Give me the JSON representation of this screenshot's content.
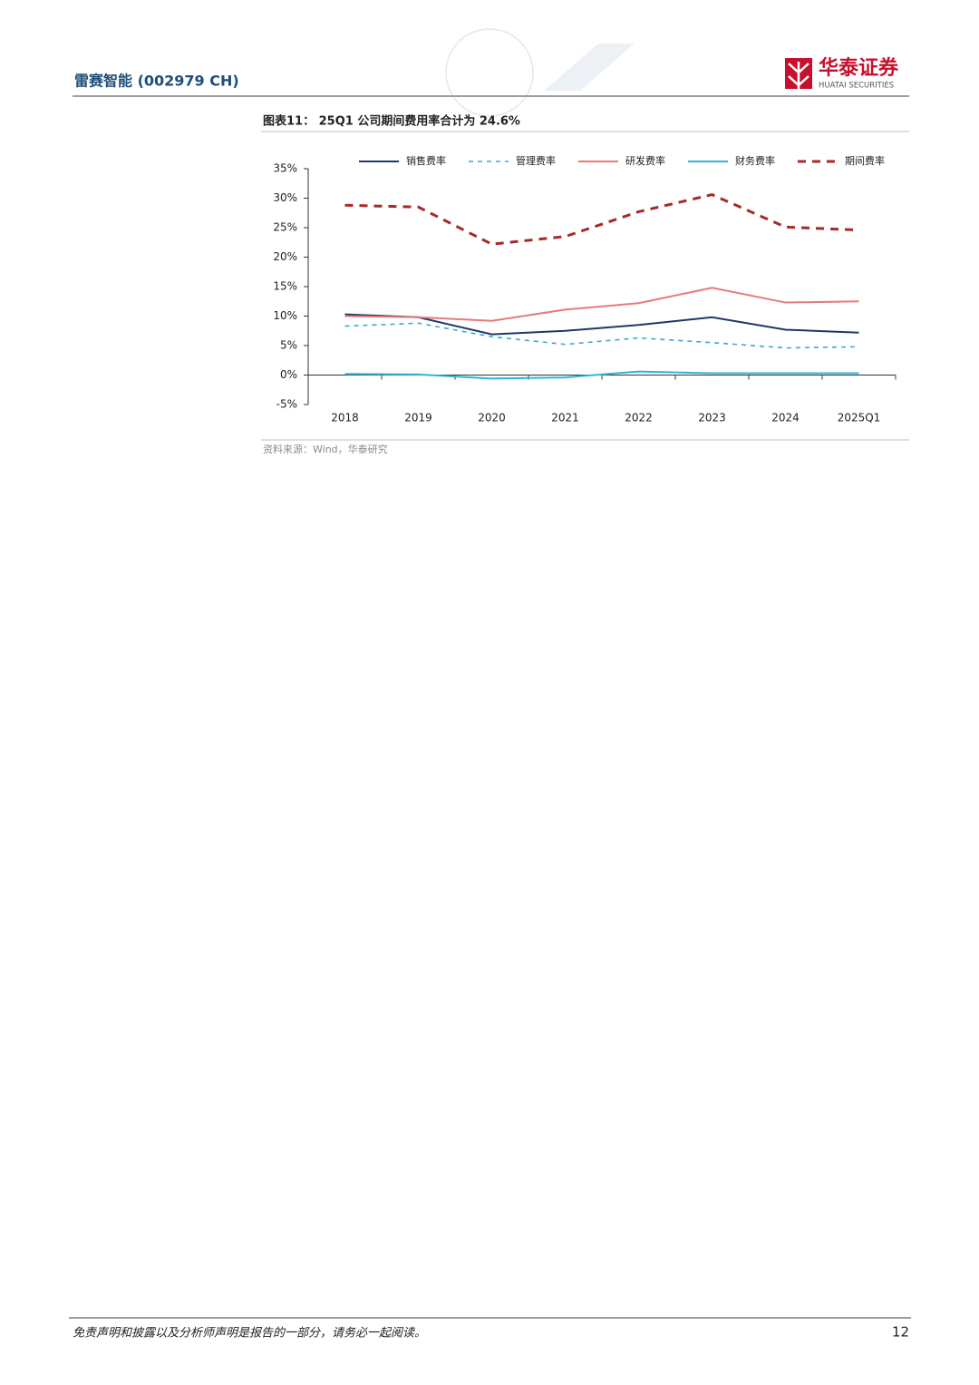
{
  "header": {
    "company": "雷赛智能 (002979 CH)",
    "logo_cn": "华泰证券",
    "logo_en": "HUATAI SECURITIES"
  },
  "chart_data": {
    "type": "line",
    "title": "图表11： 25Q1 公司期间费用率合计为 24.6%",
    "categories": [
      "2018",
      "2019",
      "2020",
      "2021",
      "2022",
      "2023",
      "2024",
      "2025Q1"
    ],
    "series": [
      {
        "name": "销售费率",
        "color": "#1f3864",
        "dashed": false,
        "values": [
          10.3,
          9.8,
          6.9,
          7.5,
          8.5,
          9.8,
          7.7,
          7.2
        ]
      },
      {
        "name": "管理费率",
        "color": "#3aa8d8",
        "dashed": true,
        "values": [
          8.3,
          8.8,
          6.5,
          5.2,
          6.3,
          5.5,
          4.6,
          4.8
        ]
      },
      {
        "name": "研发费率",
        "color": "#e8797a",
        "dashed": false,
        "values": [
          10.0,
          9.8,
          9.2,
          11.1,
          12.2,
          14.8,
          12.3,
          12.5
        ]
      },
      {
        "name": "财务费率",
        "color": "#2fb5d9",
        "dashed": false,
        "values": [
          0.2,
          0.1,
          -0.6,
          -0.4,
          0.6,
          0.3,
          0.3,
          0.3
        ]
      },
      {
        "name": "期间费率",
        "color": "#a52a2a",
        "dashed": true,
        "values": [
          28.8,
          28.5,
          22.2,
          23.5,
          27.7,
          30.6,
          25.1,
          24.6
        ]
      }
    ],
    "ylim": [
      -5,
      35
    ],
    "yticks": [
      {
        "value": -5,
        "label": "-5%"
      },
      {
        "value": 0,
        "label": "0%"
      },
      {
        "value": 5,
        "label": "5%"
      },
      {
        "value": 10,
        "label": "10%"
      },
      {
        "value": 15,
        "label": "15%"
      },
      {
        "value": 20,
        "label": "20%"
      },
      {
        "value": 25,
        "label": "25%"
      },
      {
        "value": 30,
        "label": "30%"
      },
      {
        "value": 35,
        "label": "35%"
      }
    ],
    "grid": false,
    "legend": "top",
    "source": "资料来源：Wind，华泰研究"
  },
  "footer": {
    "disclaimer": "免责声明和披露以及分析师声明是报告的一部分，请务必一起阅读。",
    "page": "12"
  }
}
